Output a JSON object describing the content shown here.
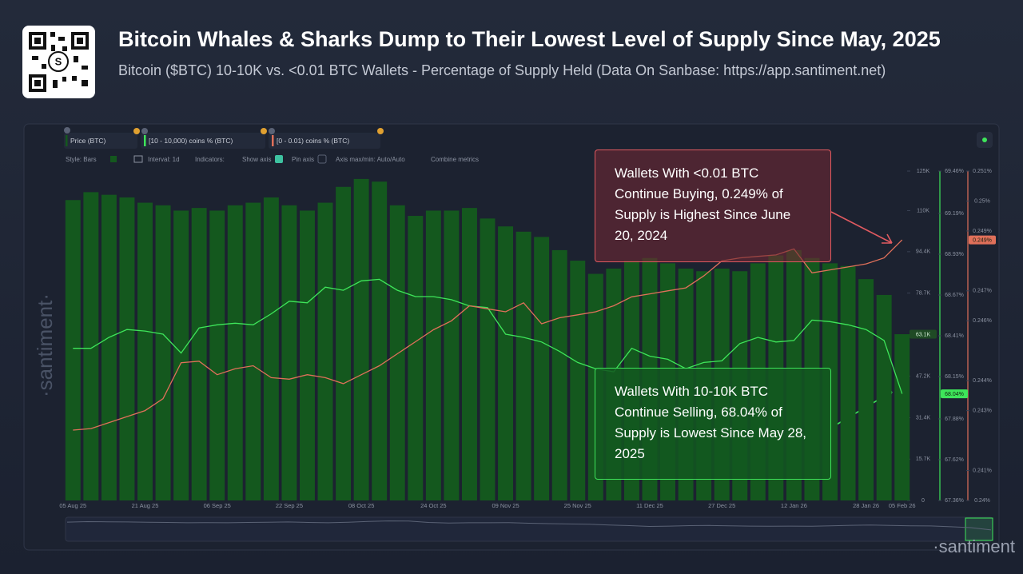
{
  "header": {
    "title": "Bitcoin Whales & Sharks Dump to Their Lowest Level of Supply Since May, 2025",
    "subtitle": "Bitcoin ($BTC) 10-10K vs. <0.01 BTC Wallets - Percentage of Supply Held (Data On Sanbase: https://app.santiment.net)"
  },
  "ui": {
    "toolbar": {
      "style": "Style: Bars",
      "interval": "Interval: 1d",
      "indicators": "Indicators:",
      "show_axis": "Show axis",
      "pin_axis": "Pin axis",
      "axis_minmax": "Axis max/min: Auto/Auto",
      "combine": "Combine metrics"
    },
    "watermark": "·santiment·",
    "footer_logo": "·santiment"
  },
  "chart_data": {
    "type": "bar",
    "categories": [
      "05 Aug 25",
      null,
      null,
      null,
      "21 Aug 25",
      null,
      null,
      null,
      "06 Sep 25",
      null,
      null,
      null,
      "22 Sep 25",
      null,
      null,
      null,
      "08 Oct 25",
      null,
      null,
      null,
      "24 Oct 25",
      null,
      null,
      null,
      "09 Nov 25",
      null,
      null,
      null,
      "25 Nov 25",
      null,
      null,
      null,
      "11 Dec 25",
      null,
      null,
      null,
      "27 Dec 25",
      null,
      null,
      null,
      "12 Jan 26",
      null,
      null,
      null,
      "28 Jan 26",
      null,
      "05 Feb 26"
    ],
    "series": [
      {
        "name": "Price (BTC)",
        "type": "bar",
        "axis": "y",
        "color": "#14581e",
        "last_label": "63.1K",
        "values": [
          114000,
          117000,
          116000,
          115000,
          113000,
          112000,
          110000,
          111000,
          110000,
          112000,
          113000,
          115000,
          112000,
          110000,
          113000,
          119000,
          122000,
          121000,
          112000,
          108000,
          110000,
          110000,
          111000,
          107000,
          104000,
          102000,
          100000,
          95000,
          91000,
          86000,
          88000,
          91000,
          92000,
          90000,
          88000,
          87000,
          88000,
          87000,
          90000,
          93000,
          95000,
          92000,
          90000,
          89000,
          84000,
          78000,
          63100
        ]
      },
      {
        "name": "[10 - 10,000) coins % (BTC)",
        "type": "line",
        "axis": "y2",
        "color": "#3ee55a",
        "last_label": "68.04%",
        "values": [
          68.33,
          68.33,
          68.4,
          68.45,
          68.44,
          68.42,
          68.3,
          68.46,
          68.48,
          68.49,
          68.48,
          68.55,
          68.63,
          68.62,
          68.72,
          68.7,
          68.76,
          68.77,
          68.7,
          68.66,
          68.66,
          68.64,
          68.6,
          68.59,
          68.42,
          68.4,
          68.37,
          68.31,
          68.24,
          68.2,
          68.18,
          68.33,
          68.28,
          68.26,
          68.2,
          68.24,
          68.25,
          68.36,
          68.4,
          68.37,
          68.38,
          68.51,
          68.5,
          68.48,
          68.45,
          68.38,
          68.04
        ]
      },
      {
        "name": "[0 - 0.01) coins % (BTC)",
        "type": "line",
        "axis": "y3",
        "color": "#e0705a",
        "last_label": "0.249%",
        "values": [
          0.24235,
          0.2424,
          0.2426,
          0.2428,
          0.243,
          0.2434,
          0.2446,
          0.24465,
          0.2442,
          0.2444,
          0.2445,
          0.2441,
          0.24405,
          0.2442,
          0.2441,
          0.2439,
          0.2442,
          0.2445,
          0.2449,
          0.2453,
          0.2457,
          0.246,
          0.2465,
          0.2464,
          0.2463,
          0.2466,
          0.2459,
          0.2461,
          0.2462,
          0.2463,
          0.2465,
          0.2468,
          0.2469,
          0.247,
          0.2471,
          0.2475,
          0.248,
          0.2481,
          0.24815,
          0.2482,
          0.2484,
          0.2476,
          0.2477,
          0.2478,
          0.2479,
          0.2481,
          0.2487
        ]
      }
    ],
    "ylim": [
      0,
      125000
    ],
    "yticks": [
      0,
      {
        "value": 15700,
        "label": "15.7K"
      },
      {
        "value": 31400,
        "label": "31.4K"
      },
      {
        "value": 47200,
        "label": "47.2K"
      },
      {
        "value": 78700,
        "label": "78.7K"
      },
      {
        "value": 94400,
        "label": "94.4K"
      },
      {
        "value": 110000,
        "label": "110K"
      },
      {
        "value": 125000,
        "label": "125K"
      }
    ],
    "y2lim": [
      67.36,
      69.46
    ],
    "y2ticks": [
      {
        "value": 67.36,
        "label": "67.36%"
      },
      {
        "value": 67.62,
        "label": "67.62%"
      },
      {
        "value": 67.88,
        "label": "67.88%"
      },
      {
        "value": 68.15,
        "label": "68.15%"
      },
      {
        "value": 68.41,
        "label": "68.41%"
      },
      {
        "value": 68.67,
        "label": "68.67%"
      },
      {
        "value": 68.93,
        "label": "68.93%"
      },
      {
        "value": 69.19,
        "label": "69.19%"
      },
      {
        "value": 69.46,
        "label": "69.46%"
      }
    ],
    "y3lim": [
      0.24,
      0.251
    ],
    "y3ticks": [
      {
        "value": 0.24,
        "label": "0.24%"
      },
      {
        "value": 0.241,
        "label": "0.241%"
      },
      {
        "value": 0.243,
        "label": "0.243%"
      },
      {
        "value": 0.244,
        "label": "0.244%"
      },
      {
        "value": 0.246,
        "label": "0.246%"
      },
      {
        "value": 0.247,
        "label": "0.247%"
      },
      {
        "value": 0.249,
        "label": "0.249%"
      },
      {
        "value": 0.25,
        "label": "0.25%"
      },
      {
        "value": 0.251,
        "label": "0.251%"
      }
    ],
    "annotations": [
      {
        "text": "Wallets With <0.01 BTC Continue Buying, 0.249% of Supply is Highest Since June 20, 2024",
        "color": "#e05a60"
      },
      {
        "text": "Wallets With 10-10K BTC Continue Selling, 68.04% of Supply is Lowest Since May 28, 2025",
        "color": "#3ee55a"
      }
    ]
  }
}
